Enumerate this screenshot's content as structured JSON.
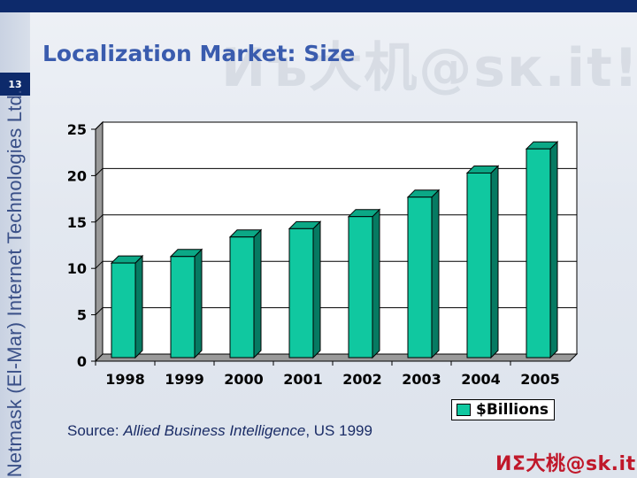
{
  "slide": {
    "number": "13",
    "title": "Localization Market: Size",
    "side_brand": "Netmask (El-Mar) Internet Technologies Ltd.",
    "watermark": "Иъ大机@sк.it!",
    "logo_text": "ИΣ大桃@sk.it!"
  },
  "source": {
    "prefix": "Source: ",
    "work": "Allied Business Intelligence",
    "suffix": ", US 1999"
  },
  "colors": {
    "bar_front": "#10c8a0",
    "bar_side": "#067a62",
    "bar_top": "#0ba886",
    "title": "#3a5cae",
    "navy": "#0d2a6b"
  },
  "chart_data": {
    "type": "bar",
    "style": "3d",
    "categories": [
      "1998",
      "1999",
      "2000",
      "2001",
      "2002",
      "2003",
      "2004",
      "2005"
    ],
    "series": [
      {
        "name": "$Billions",
        "values": [
          10.2,
          10.9,
          13.0,
          13.9,
          15.2,
          17.3,
          19.9,
          22.5
        ]
      }
    ],
    "title": "",
    "xlabel": "",
    "ylabel": "",
    "ylim": [
      0,
      25
    ],
    "yticks": [
      "0",
      "5",
      "10",
      "15",
      "20",
      "25"
    ],
    "grid": true,
    "legend": "bottom-right"
  }
}
